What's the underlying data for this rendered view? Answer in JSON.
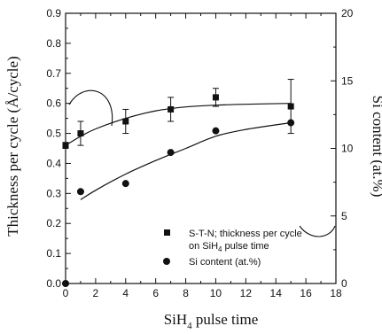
{
  "chart_data": {
    "type": "scatter",
    "title": "",
    "xlabel": "SiH",
    "xlabel_sub": "4",
    "xlabel_tail": " pulse time",
    "ylabel": "Thickness per cycle (Å/cycle)",
    "y2label": "Si content (at.%)",
    "xlim": [
      0,
      18
    ],
    "ylim": [
      0.0,
      0.9
    ],
    "y2lim": [
      0,
      20
    ],
    "xticks": [
      "0",
      "2",
      "4",
      "6",
      "8",
      "10",
      "12",
      "14",
      "16",
      "18"
    ],
    "yticks": [
      "0.0",
      "0.1",
      "0.2",
      "0.3",
      "0.4",
      "0.5",
      "0.6",
      "0.7",
      "0.8",
      "0.9"
    ],
    "y2ticks": [
      "0",
      "5",
      "10",
      "15",
      "20"
    ],
    "grid": false,
    "legend_placement": "bottom-right",
    "series": [
      {
        "name": "S-T-N; thickness per cycle on SiH4 pulse time",
        "legend_lines": [
          "S-T-N; thickness per cycle",
          "on SiH",
          "4",
          " pulse time"
        ],
        "marker": "square",
        "axis": "left",
        "x": [
          0,
          1,
          4,
          7,
          10,
          15
        ],
        "y": [
          0.46,
          0.5,
          0.54,
          0.58,
          0.62,
          0.59
        ],
        "yerr": [
          0.01,
          0.04,
          0.04,
          0.04,
          0.03,
          0.09
        ],
        "fit_x": [
          0,
          1,
          2,
          4,
          6,
          8,
          10,
          12,
          15
        ],
        "fit_y": [
          0.46,
          0.49,
          0.515,
          0.55,
          0.575,
          0.588,
          0.594,
          0.597,
          0.6
        ]
      },
      {
        "name": "Si content (at.%)",
        "legend_lines": [
          "Si content (at.%)"
        ],
        "marker": "circle",
        "axis": "right",
        "x": [
          0,
          1,
          4,
          7,
          10,
          15
        ],
        "y": [
          0,
          6.8,
          7.4,
          9.7,
          11.3,
          11.9
        ],
        "fit_x": [
          1,
          2,
          4,
          6,
          8,
          10,
          12,
          15
        ],
        "fit_y": [
          6.2,
          6.9,
          8.1,
          9.1,
          10.0,
          10.9,
          11.4,
          11.9
        ]
      }
    ],
    "colors": {
      "ink": "#111111",
      "background": "#ffffff"
    }
  }
}
